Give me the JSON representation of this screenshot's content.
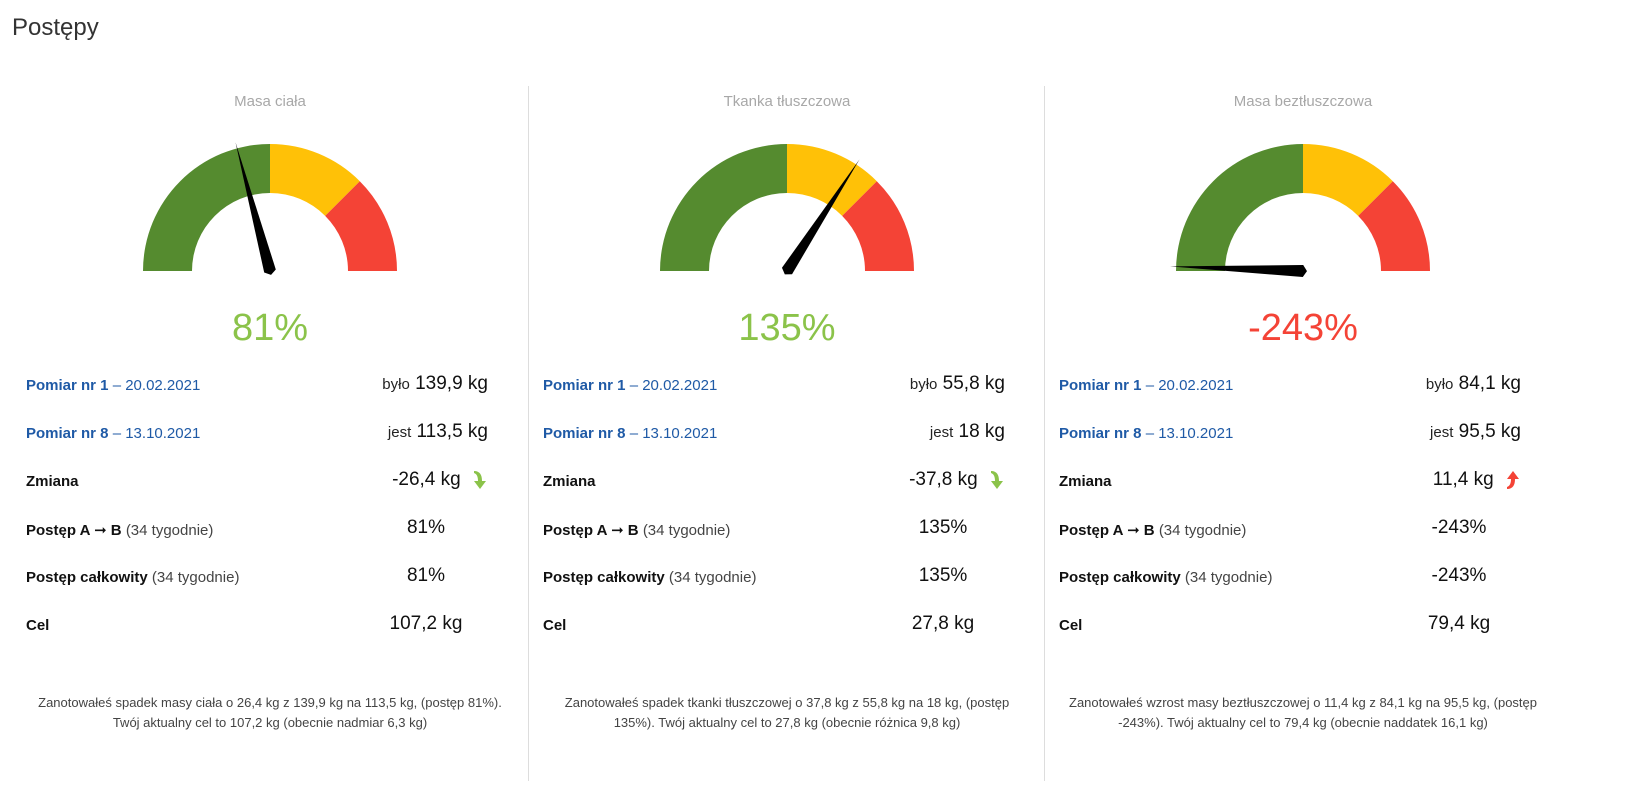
{
  "page_title": "Postępy",
  "colors": {
    "green": "#558b2f",
    "yellow": "#ffc107",
    "red": "#f44336",
    "pct_green": "#8bc34a",
    "pct_red": "#f44336",
    "blue": "#1f5aa6"
  },
  "labels": {
    "pomiar1": "Pomiar nr 1",
    "pomiar8": "Pomiar nr 8",
    "dash": "–",
    "bylo": "było",
    "jest": "jest",
    "zmiana": "Zmiana",
    "postep_ab": "Postęp A ➞ B",
    "postep_total": "Postęp całkowity",
    "weeks": "(34 tygodnie)",
    "cel": "Cel"
  },
  "panels": [
    {
      "title": "Masa ciała",
      "percent": "81%",
      "percent_color": "green",
      "needle_value": 0.81,
      "date1": "20.02.2021",
      "date8": "13.10.2021",
      "before": "139,9 kg",
      "now": "113,5 kg",
      "change": "-26,4 kg",
      "change_dir": "down",
      "progress_ab": "81%",
      "progress_total": "81%",
      "goal": "107,2 kg",
      "summary": "Zanotowałeś spadek masy ciała o 26,4 kg z 139,9 kg na 113,5 kg, (postęp 81%). Twój aktualny cel to 107,2 kg (obecnie nadmiar 6,3 kg)"
    },
    {
      "title": "Tkanka tłuszczowa",
      "percent": "135%",
      "percent_color": "green",
      "needle_value": 1.35,
      "date1": "20.02.2021",
      "date8": "13.10.2021",
      "before": "55,8 kg",
      "now": "18 kg",
      "change": "-37,8 kg",
      "change_dir": "down",
      "progress_ab": "135%",
      "progress_total": "135%",
      "goal": "27,8 kg",
      "summary": "Zanotowałeś spadek tkanki tłuszczowej o 37,8 kg z 55,8 kg na 18 kg, (postęp 135%). Twój aktualny cel to 27,8 kg (obecnie różnica 9,8 kg)"
    },
    {
      "title": "Masa beztłuszczowa",
      "percent": "-243%",
      "percent_color": "red",
      "needle_value": -2.43,
      "date1": "20.02.2021",
      "date8": "13.10.2021",
      "before": "84,1 kg",
      "now": "95,5 kg",
      "change": "11,4 kg",
      "change_dir": "up",
      "progress_ab": "-243%",
      "progress_total": "-243%",
      "goal": "79,4 kg",
      "summary": "Zanotowałeś wzrost masy beztłuszczowej o 11,4 kg z 84,1 kg na 95,5 kg, (postęp -243%). Twój aktualny cel to 79,4 kg (obecnie naddatek 16,1 kg)"
    }
  ]
}
